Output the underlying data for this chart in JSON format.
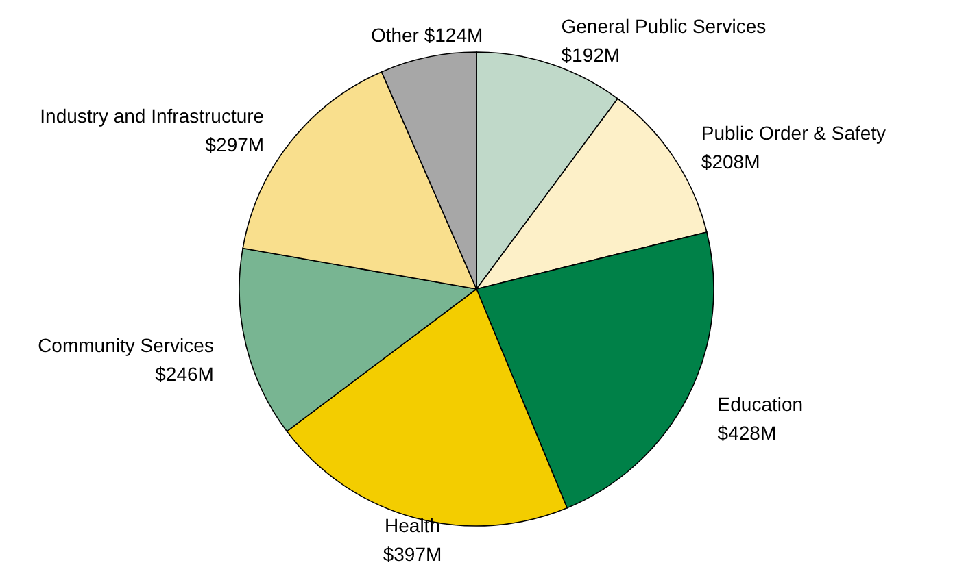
{
  "chart_data": {
    "type": "pie",
    "categories": [
      "General Public Services",
      "Public Order & Safety",
      "Education",
      "Health",
      "Community Services",
      "Industry and Infrastructure",
      "Other"
    ],
    "values": [
      192,
      208,
      428,
      397,
      246,
      297,
      124
    ],
    "value_labels": [
      "$192M",
      "$208M",
      "$428M",
      "$397M",
      "$246M",
      "$297M",
      "$124M"
    ],
    "colors": [
      "#c0d9c9",
      "#fdf0c8",
      "#008148",
      "#f3cd00",
      "#78b592",
      "#f9df8d",
      "#a7a7a7"
    ]
  }
}
